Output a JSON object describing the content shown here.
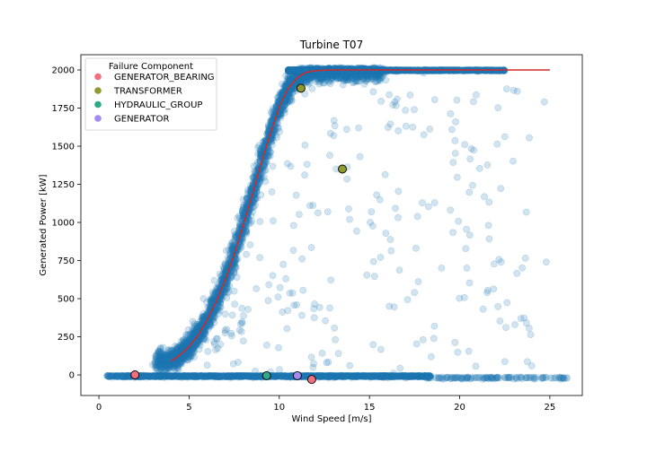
{
  "chart_data": {
    "type": "scatter",
    "title": "Turbine T07",
    "xlabel": "Wind Speed [m/s]",
    "ylabel": "Generated Power [kW]",
    "xlim": [
      -1,
      26.8
    ],
    "ylim": [
      -135,
      2100
    ],
    "xticks": [
      0,
      5,
      10,
      15,
      20,
      25
    ],
    "yticks": [
      0,
      250,
      500,
      750,
      1000,
      1250,
      1500,
      1750,
      2000
    ],
    "grid": false,
    "legend": {
      "title": "Failure Component",
      "placement": "top-left",
      "entries": [
        "GENERATOR_BEARING",
        "TRANSFORMER",
        "HYDRAULIC_GROUP",
        "GENERATOR"
      ]
    },
    "colors": {
      "scatter": "#1f77b4",
      "curve": "#d62728",
      "GENERATOR_BEARING": "#f0707e",
      "TRANSFORMER": "#8f9a2f",
      "HYDRAULIC_GROUP": "#2ea98a",
      "GENERATOR": "#a28bf0"
    },
    "power_curve": {
      "name": "",
      "x": [
        4.0,
        4.5,
        5.0,
        5.5,
        6.0,
        6.5,
        7.0,
        7.5,
        8.0,
        8.5,
        9.0,
        9.5,
        10.0,
        10.5,
        11.0,
        11.5,
        12.0,
        12.5,
        13.0,
        14.0,
        15.0,
        17.0,
        20.0,
        25.0
      ],
      "y": [
        90,
        130,
        185,
        260,
        360,
        480,
        620,
        790,
        980,
        1180,
        1390,
        1580,
        1760,
        1880,
        1950,
        1985,
        1995,
        1999,
        2000,
        2000,
        2000,
        2000,
        2000,
        2000
      ]
    },
    "failure_points": [
      {
        "component": "GENERATOR_BEARING",
        "x": 2.0,
        "y": 0
      },
      {
        "component": "GENERATOR_BEARING",
        "x": 11.8,
        "y": -30
      },
      {
        "component": "TRANSFORMER",
        "x": 11.2,
        "y": 1880
      },
      {
        "component": "TRANSFORMER",
        "x": 13.5,
        "y": 1350
      },
      {
        "component": "HYDRAULIC_GROUP",
        "x": 9.3,
        "y": -5
      },
      {
        "component": "GENERATOR",
        "x": 11.0,
        "y": -5
      }
    ],
    "scatter_description_points": [
      [
        0.5,
        -5
      ],
      [
        0.8,
        -8
      ],
      [
        1.2,
        -3
      ],
      [
        1.6,
        -6
      ],
      [
        2.4,
        -4
      ],
      [
        3.0,
        -7
      ],
      [
        3.6,
        -5
      ],
      [
        4.2,
        -9
      ],
      [
        4.8,
        -6
      ],
      [
        5.5,
        -10
      ],
      [
        6.2,
        -8
      ],
      [
        7.0,
        -12
      ],
      [
        7.8,
        -10
      ],
      [
        8.6,
        -14
      ],
      [
        9.5,
        -11
      ],
      [
        10.4,
        -15
      ],
      [
        11.3,
        -13
      ],
      [
        12.2,
        -16
      ],
      [
        13.1,
        -14
      ],
      [
        14.0,
        -17
      ],
      [
        15.0,
        -15
      ],
      [
        16.0,
        -18
      ],
      [
        17.0,
        -20
      ],
      [
        18.2,
        -22
      ],
      [
        19.5,
        -24
      ],
      [
        20.6,
        -26
      ],
      [
        21.8,
        -25
      ],
      [
        23.0,
        -27
      ],
      [
        24.2,
        -26
      ],
      [
        25.6,
        -28
      ],
      [
        4.4,
        180
      ],
      [
        5.2,
        350
      ],
      [
        5.8,
        500
      ],
      [
        6.4,
        620
      ],
      [
        7.2,
        820
      ],
      [
        8.3,
        1200
      ],
      [
        9.7,
        1620
      ],
      [
        10.6,
        1850
      ],
      [
        12.5,
        1990
      ],
      [
        14.5,
        2000
      ],
      [
        16.5,
        1990
      ],
      [
        18.0,
        1980
      ],
      [
        19.5,
        2000
      ],
      [
        21.0,
        1990
      ],
      [
        23.2,
        1860
      ],
      [
        24.7,
        1790
      ],
      [
        24.8,
        740
      ],
      [
        22.3,
        740
      ],
      [
        19.0,
        700
      ],
      [
        17.5,
        540
      ],
      [
        16.1,
        450
      ],
      [
        14.4,
        1620
      ],
      [
        15.4,
        1180
      ],
      [
        13.9,
        1020
      ],
      [
        12.8,
        1440
      ],
      [
        11.7,
        1110
      ],
      [
        10.8,
        980
      ],
      [
        18.6,
        320
      ],
      [
        20.4,
        700
      ],
      [
        21.6,
        980
      ]
    ]
  }
}
